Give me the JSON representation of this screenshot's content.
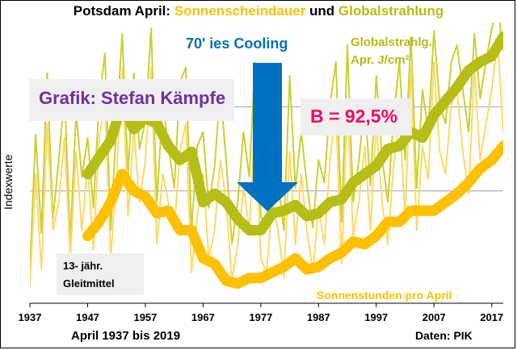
{
  "title": {
    "prefix": "Potsdam April: ",
    "series1": "Sonnenscheindauer",
    "connector": " und ",
    "series2": "Globalstrahlung"
  },
  "colors": {
    "sun": "#ffc000",
    "sun_raw": "#ffd966",
    "glob": "#b5bd17",
    "glob_raw": "#c9d132",
    "arrow": "#0070c0",
    "purple": "#7030a0",
    "red": "#ff0066",
    "grid": "#a0a0a0"
  },
  "annotations": {
    "cooling": "70' ies Cooling",
    "author": "Grafik: Stefan Kämpfe",
    "b_value": "B = 92,5%",
    "glob_line1": "Globalstrahlg.",
    "glob_line2": "Apr. J/cm²",
    "gleit_line1": "13- jähr.",
    "gleit_line2": "Gleitmittel",
    "sun_label": "Sonnenstunden pro April"
  },
  "axes": {
    "ylabel": "Indexwerte",
    "xlabel": "April 1937 bis 2019",
    "source": "Daten: PIK"
  },
  "chart_data": {
    "type": "line",
    "x_range": [
      1937,
      2019
    ],
    "x_ticks": [
      "1937",
      "1947",
      "1957",
      "1967",
      "1977",
      "1987",
      "1997",
      "2007",
      "2017"
    ],
    "y_range": [
      0,
      10
    ],
    "grid": true,
    "y_ticks_labeled": false,
    "series": [
      {
        "name": "Globalstrahlg. Apr. J/cm²",
        "x": [
          1937,
          1938,
          1939,
          1940,
          1941,
          1942,
          1943,
          1944,
          1945,
          1946,
          1947,
          1948,
          1949,
          1950,
          1951,
          1952,
          1953,
          1954,
          1955,
          1956,
          1957,
          1958,
          1959,
          1960,
          1961,
          1962,
          1963,
          1964,
          1965,
          1966,
          1967,
          1968,
          1969,
          1970,
          1971,
          1972,
          1973,
          1974,
          1975,
          1976,
          1977,
          1978,
          1979,
          1980,
          1981,
          1982,
          1983,
          1984,
          1985,
          1986,
          1987,
          1988,
          1989,
          1990,
          1991,
          1992,
          1993,
          1994,
          1995,
          1996,
          1997,
          1998,
          1999,
          2000,
          2001,
          2002,
          2003,
          2004,
          2005,
          2006,
          2007,
          2008,
          2009,
          2010,
          2011,
          2012,
          2013,
          2014,
          2015,
          2016,
          2017,
          2018,
          2019
        ],
        "values": [
          1.2,
          6.0,
          2.5,
          8.2,
          3.0,
          5.1,
          7.5,
          2.2,
          6.8,
          4.5,
          5.9,
          3.4,
          7.2,
          8.9,
          2.6,
          6.4,
          9.6,
          4.6,
          8.2,
          5.5,
          6.5,
          9.8,
          3.6,
          7.1,
          5.6,
          4.1,
          7.9,
          8.4,
          2.6,
          5.6,
          6.1,
          3.4,
          4.9,
          7.6,
          5.1,
          2.1,
          3.6,
          6.1,
          4.5,
          8.6,
          3.1,
          2.6,
          5.2,
          4.3,
          2.6,
          8.1,
          4.1,
          6.1,
          4.2,
          2.7,
          5.1,
          4.3,
          7.1,
          8.6,
          2.9,
          9.2,
          3.6,
          5.1,
          7.1,
          4.2,
          8.1,
          5.2,
          3.6,
          6.6,
          8.6,
          5.1,
          9.5,
          4.1,
          7.6,
          6.1,
          9.7,
          7.1,
          6.4,
          8.6,
          9.2,
          7.6,
          6.1,
          9.6,
          7.3,
          8.6,
          9.8,
          10.6,
          9.0
        ]
      },
      {
        "name": "Sonnenstunden pro April",
        "x": [
          1937,
          1938,
          1939,
          1940,
          1941,
          1942,
          1943,
          1944,
          1945,
          1946,
          1947,
          1948,
          1949,
          1950,
          1951,
          1952,
          1953,
          1954,
          1955,
          1956,
          1957,
          1958,
          1959,
          1960,
          1961,
          1962,
          1963,
          1964,
          1965,
          1966,
          1967,
          1968,
          1969,
          1970,
          1971,
          1972,
          1973,
          1974,
          1975,
          1976,
          1977,
          1978,
          1979,
          1980,
          1981,
          1982,
          1983,
          1984,
          1985,
          1986,
          1987,
          1988,
          1989,
          1990,
          1991,
          1992,
          1993,
          1994,
          1995,
          1996,
          1997,
          1998,
          1999,
          2000,
          2001,
          2002,
          2003,
          2004,
          2005,
          2006,
          2007,
          2008,
          2009,
          2010,
          2011,
          2012,
          2013,
          2014,
          2015,
          2016,
          2017,
          2018,
          2019
        ],
        "values": [
          0.6,
          4.6,
          1.2,
          6.4,
          2.6,
          3.6,
          5.9,
          1.6,
          5.4,
          2.6,
          4.9,
          1.9,
          5.9,
          7.2,
          1.6,
          4.6,
          8.4,
          3.1,
          6.2,
          3.6,
          5.1,
          8.4,
          2.1,
          4.6,
          3.6,
          2.6,
          5.4,
          6.4,
          1.1,
          3.1,
          4.6,
          1.6,
          2.6,
          5.1,
          3.6,
          0.8,
          2.1,
          4.1,
          2.6,
          6.6,
          1.6,
          1.1,
          3.6,
          2.6,
          0.9,
          5.4,
          2.1,
          4.6,
          2.6,
          1.1,
          3.4,
          2.1,
          5.1,
          6.9,
          1.4,
          7.1,
          2.4,
          3.6,
          5.6,
          2.6,
          6.4,
          3.6,
          2.1,
          4.9,
          6.6,
          3.1,
          8.4,
          2.6,
          5.6,
          4.4,
          8.6,
          5.4,
          4.6,
          7.1,
          7.6,
          5.4,
          3.9,
          8.4,
          5.1,
          6.4,
          7.6,
          9.4,
          6.1
        ]
      },
      {
        "name": "Globalstrahlg. 13- jähr. Gleitmittel",
        "x": [
          1947,
          1949,
          1951,
          1953,
          1955,
          1957,
          1959,
          1961,
          1963,
          1965,
          1967,
          1969,
          1971,
          1973,
          1975,
          1977,
          1979,
          1981,
          1983,
          1985,
          1987,
          1989,
          1991,
          1993,
          1995,
          1997,
          1999,
          2001,
          2003,
          2005,
          2007,
          2009,
          2011,
          2013,
          2015,
          2017,
          2019
        ],
        "values": [
          4.6,
          5.2,
          5.8,
          7.1,
          6.2,
          6.6,
          6.4,
          5.6,
          5.1,
          5.4,
          3.6,
          3.9,
          3.6,
          3.0,
          2.6,
          2.6,
          3.2,
          3.3,
          3.5,
          3.1,
          3.2,
          3.6,
          3.7,
          4.3,
          4.6,
          4.9,
          5.5,
          5.6,
          6.1,
          5.9,
          6.7,
          7.2,
          7.7,
          8.3,
          8.6,
          8.8,
          9.5
        ]
      },
      {
        "name": "Sonnenstunden 13- jähr. Gleitmittel",
        "x": [
          1947,
          1949,
          1951,
          1953,
          1955,
          1957,
          1959,
          1961,
          1963,
          1965,
          1967,
          1969,
          1971,
          1973,
          1975,
          1977,
          1979,
          1981,
          1983,
          1985,
          1987,
          1989,
          1991,
          1993,
          1995,
          1997,
          1999,
          2001,
          2003,
          2005,
          2007,
          2009,
          2011,
          2013,
          2015,
          2017,
          2019
        ],
        "values": [
          2.4,
          2.9,
          3.6,
          4.6,
          4.0,
          3.8,
          3.2,
          3.3,
          2.6,
          2.6,
          1.6,
          1.4,
          0.8,
          0.7,
          0.9,
          0.9,
          1.1,
          1.3,
          1.6,
          1.2,
          1.3,
          1.6,
          1.8,
          2.2,
          2.1,
          2.4,
          2.9,
          2.9,
          3.3,
          3.3,
          3.3,
          3.6,
          3.9,
          4.3,
          4.8,
          5.1,
          5.6
        ]
      }
    ]
  }
}
